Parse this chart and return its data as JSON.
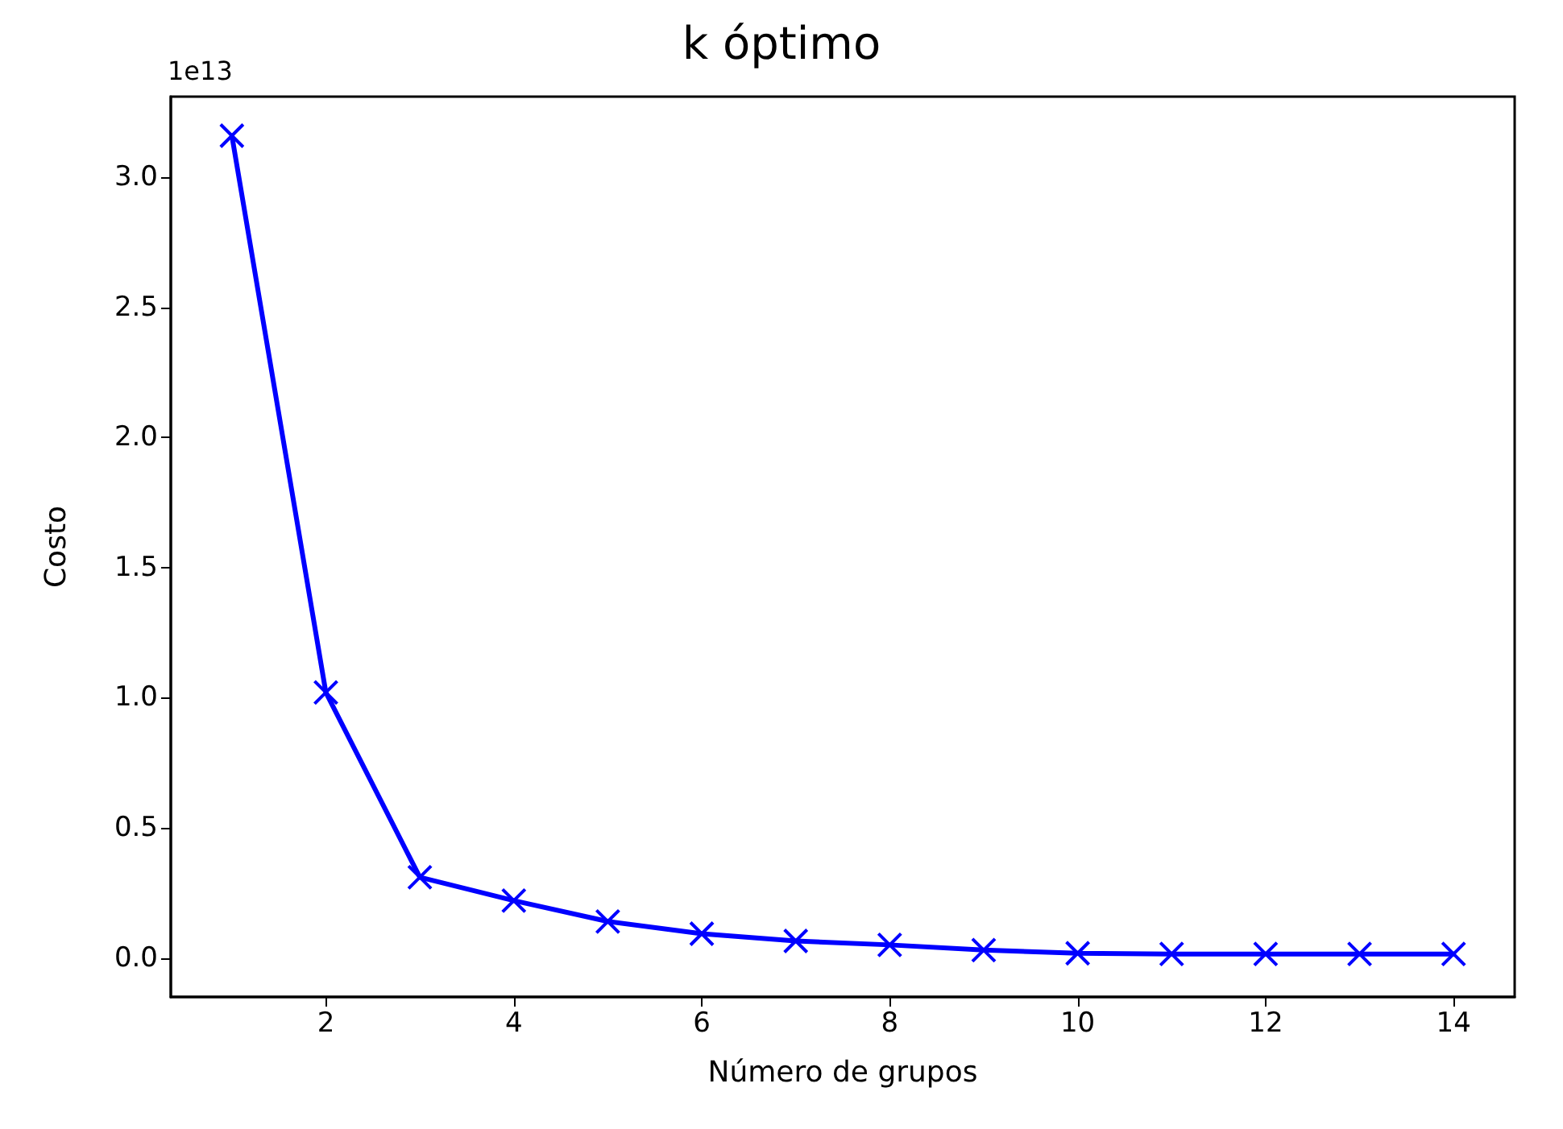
{
  "chart_data": {
    "type": "line",
    "title": "k óptimo",
    "xlabel": "Número de grupos",
    "ylabel": "Costo",
    "annotations": [
      "1e13"
    ],
    "x": [
      1,
      2,
      3,
      4,
      5,
      6,
      7,
      8,
      9,
      10,
      11,
      12,
      13,
      14
    ],
    "series": [
      {
        "color": "#0000ff",
        "values": [
          3.16,
          1.02,
          0.31,
          0.22,
          0.14,
          0.093,
          0.065,
          0.05,
          0.03,
          0.018,
          0.015,
          0.015,
          0.015,
          0.015
        ]
      }
    ],
    "xlim": [
      0.35,
      14.65
    ],
    "ylim": [
      -0.15,
      3.31
    ],
    "xticks": [
      2,
      4,
      6,
      8,
      10,
      12,
      14
    ],
    "yticks": [
      {
        "value": 0,
        "label": "0.0"
      },
      {
        "value": 0.5,
        "label": "0.5"
      },
      {
        "value": 1,
        "label": "1.0"
      },
      {
        "value": 1.5,
        "label": "1.5"
      },
      {
        "value": 2,
        "label": "2.0"
      },
      {
        "value": 2.5,
        "label": "2.5"
      },
      {
        "value": 3,
        "label": "3.0"
      }
    ],
    "grid": false,
    "marker": "cross",
    "line_style": "solid"
  }
}
